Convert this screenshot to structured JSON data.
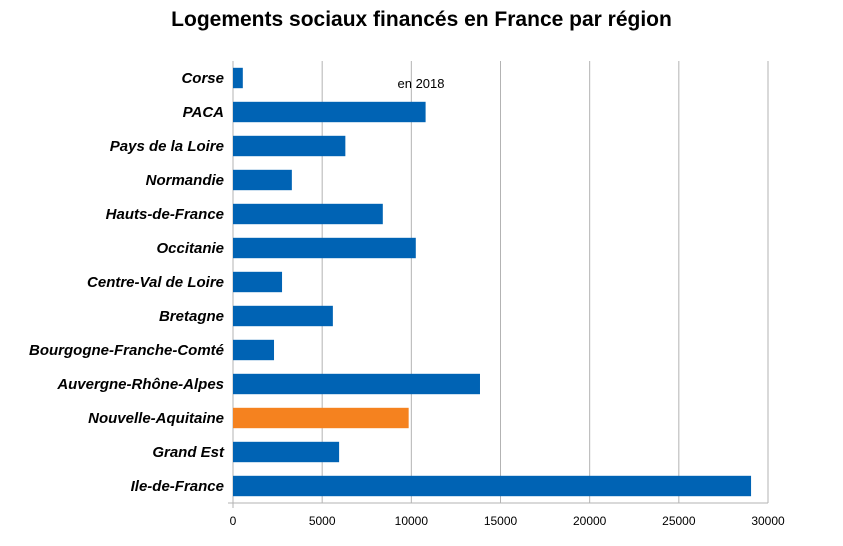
{
  "chart_data": {
    "type": "bar",
    "orientation": "horizontal",
    "title": "Logements sociaux financés en France par région",
    "subtitle": "en 2018",
    "xlabel": "",
    "ylabel": "",
    "xlim": [
      0,
      30000
    ],
    "x_ticks": [
      "0",
      "5000",
      "10000",
      "15000",
      "20000",
      "25000",
      "30000"
    ],
    "x_tick_values": [
      0,
      5000,
      10000,
      15000,
      20000,
      25000,
      30000
    ],
    "grid": "vertical",
    "legend": "none",
    "categories": [
      "Corse",
      "PACA",
      "Pays de la Loire",
      "Normandie",
      "Hauts-de-France",
      "Occitanie",
      "Centre-Val de Loire",
      "Bretagne",
      "Bourgogne-Franche-Comté",
      "Auvergne-Rhône-Alpes",
      "Nouvelle-Aquitaine",
      "Grand Est",
      "Ile-de-France"
    ],
    "values": [
      550,
      10800,
      6300,
      3300,
      8400,
      10250,
      2750,
      5600,
      2300,
      13850,
      9850,
      5950,
      29050
    ],
    "colors": {
      "default": "#0063b4",
      "highlight": "#f5821f",
      "grid": "#b3b3b3"
    },
    "highlight_category": "Nouvelle-Aquitaine"
  }
}
